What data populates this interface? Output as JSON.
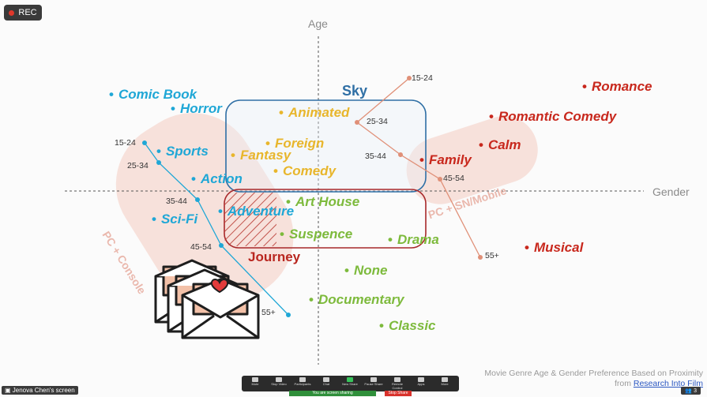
{
  "recording": {
    "label": "REC"
  },
  "axes": {
    "vertical_label": "Age",
    "horizontal_label": "Gender"
  },
  "clusters": {
    "sky": "Sky",
    "journey": "Journey",
    "pc_console": "PC + Console",
    "pc_sn_mobile": "PC + SN/Mobile"
  },
  "genres": {
    "comic_book": "Comic Book",
    "horror": "Horror",
    "sports": "Sports",
    "action": "Action",
    "adventure": "Adventure",
    "sci_fi": "Sci-Fi",
    "animated": "Animated",
    "foreign": "Foreign",
    "fantasy": "Fantasy",
    "comedy": "Comedy",
    "art_house": "Art House",
    "suspence": "Suspence",
    "drama": "Drama",
    "none": "None",
    "documentary": "Documentary",
    "classic": "Classic",
    "romance": "Romance",
    "romantic_comedy": "Romantic Comedy",
    "calm": "Calm",
    "family": "Family",
    "musical": "Musical"
  },
  "age_groups_left": [
    "15-24",
    "25-34",
    "35-44",
    "45-54",
    "55+"
  ],
  "age_groups_right": [
    "15-24",
    "25-34",
    "35-44",
    "45-54",
    "55+"
  ],
  "caption": {
    "line1": "Movie Genre Age & Gender Preference Based on Proximity",
    "line2_prefix": "from ",
    "link": "Research Into Film"
  },
  "zoom": {
    "share_label": "Jenova Chen's screen",
    "participants_count": "3",
    "toolbar": [
      "Mute",
      "Stop Video",
      "Participants",
      "Chat",
      "New Share",
      "Pause Share",
      "Remote Control",
      "Apps",
      "More"
    ],
    "sharing_status": "You are screen sharing",
    "stop_share": "Stop Share"
  },
  "colors": {
    "blue": "#1fa7d6",
    "yellow": "#e8b62c",
    "green": "#7dba3c",
    "red": "#c8281d",
    "sky_border": "#2f6fa5",
    "journey_border": "#a8292b"
  }
}
